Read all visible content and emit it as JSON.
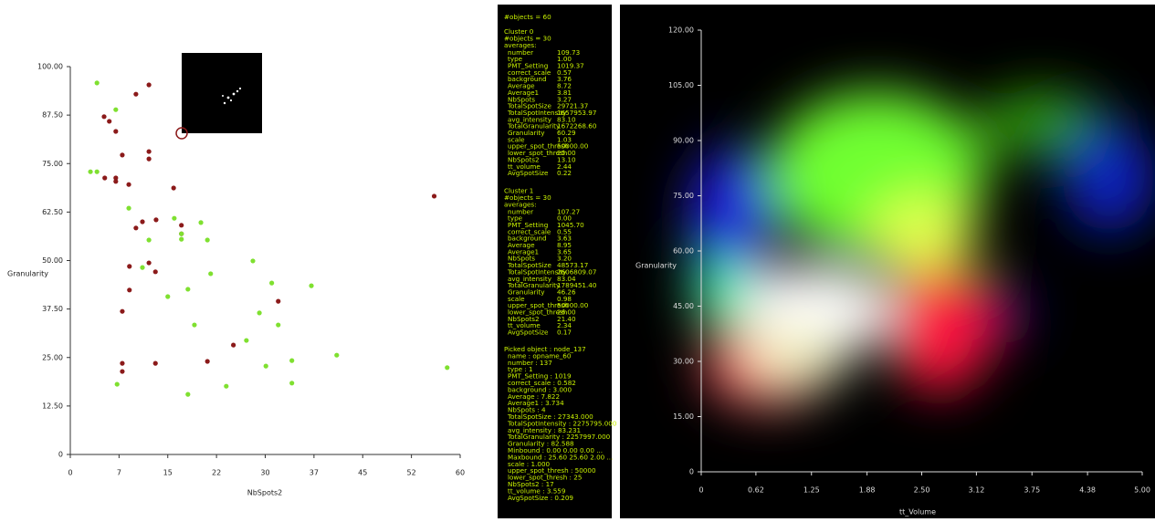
{
  "chart_data": [
    {
      "type": "scatter",
      "x_label": "NbSpots2",
      "y_label": "Granularity",
      "xlim": [
        0,
        60
      ],
      "ylim": [
        0,
        100
      ],
      "xticks": [
        0,
        {
          "value": 7.5,
          "label": "7"
        },
        15,
        {
          "value": 22.5,
          "label": "22"
        },
        30,
        {
          "value": 37.5,
          "label": "37"
        },
        45,
        {
          "value": 52.5,
          "label": "52"
        },
        60
      ],
      "yticks": [
        0,
        {
          "value": 12.5,
          "label": "12.50"
        },
        {
          "value": 25,
          "label": "25.00"
        },
        {
          "value": 37.5,
          "label": "37.50"
        },
        {
          "value": 50,
          "label": "50.00"
        },
        {
          "value": 62.5,
          "label": "62.50"
        },
        {
          "value": 75,
          "label": "75.00"
        },
        {
          "value": 87.5,
          "label": "87.50"
        },
        {
          "value": 100,
          "label": "100.00"
        }
      ],
      "series": [
        {
          "color": "#8b1a1a",
          "x": [
            10.1,
            12.1,
            5.2,
            6.0,
            7.0,
            8.0,
            12.1,
            12.1,
            5.3,
            7.0,
            7.0,
            9.0,
            15.9,
            56.0,
            13.2,
            11.1,
            17.1,
            10.1,
            17.1,
            9.1,
            12.1,
            13.1,
            9.1,
            32.0,
            8.0,
            25.1,
            21.1,
            8.0,
            13.1,
            8.0
          ],
          "values": [
            92.9,
            95.3,
            87.1,
            85.9,
            83.3,
            77.2,
            78.1,
            76.2,
            71.3,
            71.3,
            70.4,
            69.6,
            68.7,
            66.6,
            60.5,
            60.0,
            59.1,
            58.4,
            56.9,
            48.5,
            49.4,
            47.1,
            42.4,
            39.5,
            36.9,
            28.2,
            24.0,
            23.5,
            23.5,
            21.4
          ]
        },
        {
          "color": "#7fe030",
          "x": [
            4.1,
            7.0,
            3.1,
            4.1,
            9.0,
            16.0,
            20.1,
            17.1,
            17.1,
            12.1,
            21.1,
            21.6,
            28.1,
            11.1,
            31.0,
            37.1,
            18.1,
            15.0,
            29.1,
            19.1,
            32.0,
            27.1,
            41.0,
            34.1,
            30.1,
            58.0,
            34.1,
            24.0,
            7.2,
            18.1
          ],
          "values": [
            95.8,
            88.9,
            72.9,
            72.9,
            63.5,
            60.9,
            59.8,
            56.9,
            55.5,
            55.3,
            55.3,
            46.6,
            49.9,
            48.2,
            44.2,
            43.5,
            42.6,
            40.7,
            36.5,
            33.4,
            33.4,
            29.4,
            25.6,
            24.2,
            22.8,
            22.4,
            18.4,
            17.6,
            18.1,
            15.5
          ]
        }
      ]
    },
    {
      "type": "density",
      "x_label": "tt_Volume",
      "y_label": "Granularity",
      "xlim": [
        0,
        5
      ],
      "ylim": [
        0,
        120
      ],
      "xticks": [
        0,
        0.62,
        1.25,
        1.88,
        {
          "value": 2.5,
          "label": "2.50"
        },
        3.12,
        3.75,
        4.38,
        {
          "value": 5,
          "label": "5.00"
        }
      ],
      "yticks": [
        0,
        {
          "value": 15,
          "label": "15.00"
        },
        {
          "value": 30,
          "label": "30.00"
        },
        {
          "value": 45,
          "label": "45.00"
        },
        {
          "value": 60,
          "label": "60.00"
        },
        {
          "value": 75,
          "label": "75.00"
        },
        {
          "value": 90,
          "label": "90.00"
        },
        {
          "value": 105,
          "label": "105.00"
        },
        {
          "value": 120,
          "label": "120.00"
        }
      ]
    }
  ],
  "info_panel": {
    "header": "#objects = 60",
    "clusters": [
      {
        "name": "Cluster 0",
        "count": "#objects = 30",
        "averages": "averages:",
        "rows": [
          [
            "number",
            "109.73"
          ],
          [
            "type",
            "1.00"
          ],
          [
            "PMT_Setting",
            "1019.37"
          ],
          [
            "correct_scale",
            "0.57"
          ],
          [
            "background",
            "3.76"
          ],
          [
            "Average",
            "8.72"
          ],
          [
            "Average1",
            "3.81"
          ],
          [
            "NbSpots",
            "3.27"
          ],
          [
            "TotalSpotSize",
            "29721.37"
          ],
          [
            "TotalSpotIntensity",
            "1657953.97"
          ],
          [
            "avg_intensity",
            "83.10"
          ],
          [
            "TotalGranularity",
            "1672268.60"
          ],
          [
            "Granularity",
            "60.29"
          ],
          [
            "scale",
            "1.03"
          ],
          [
            "upper_spot_thresh",
            "50000.00"
          ],
          [
            "lower_spot_thresh",
            "25.00"
          ],
          [
            "NbSpots2",
            "13.10"
          ],
          [
            "tt_volume",
            "2.44"
          ],
          [
            "AvgSpotSize",
            "0.22"
          ]
        ]
      },
      {
        "name": "Cluster 1",
        "count": "#objects = 30",
        "averages": "averages:",
        "rows": [
          [
            "number",
            "107.27"
          ],
          [
            "type",
            "0.00"
          ],
          [
            "PMT_Setting",
            "1045.70"
          ],
          [
            "correct_scale",
            "0.55"
          ],
          [
            "background",
            "3.63"
          ],
          [
            "Average",
            "8.95"
          ],
          [
            "Average1",
            "3.65"
          ],
          [
            "NbSpots",
            "3.20"
          ],
          [
            "TotalSpotSize",
            "48573.17"
          ],
          [
            "TotalSpotIntensity",
            "2606809.07"
          ],
          [
            "avg_intensity",
            "83.04"
          ],
          [
            "TotalGranularity",
            "1789451.40"
          ],
          [
            "Granularity",
            "46.26"
          ],
          [
            "scale",
            "0.98"
          ],
          [
            "upper_spot_thresh",
            "50000.00"
          ],
          [
            "lower_spot_thresh",
            "26.00"
          ],
          [
            "NbSpots2",
            "21.40"
          ],
          [
            "tt_volume",
            "2.34"
          ],
          [
            "AvgSpotSize",
            "0.17"
          ]
        ]
      }
    ],
    "picked": [
      "Picked object : node_137",
      "name : opname_60",
      "number : 137",
      "type : 1",
      "PMT_Setting : 1019",
      "correct_scale : 0.582",
      "background : 3.000",
      "Average : 7.822",
      "Average1 : 3.734",
      "NbSpots : 4",
      "TotalSpotSize : 27343.000",
      "TotalSpotIntensity : 2275795.000",
      "avg_intensity : 83.231",
      "TotalGranularity : 2257997.000",
      "Granularity : 82.588",
      "Minbound : 0.00 0.00 0.00 ...",
      "Maxbound : 25.60 25.60 2.00 ...",
      "scale : 1.000",
      "upper_spot_thresh : 50000",
      "lower_spot_thresh : 25",
      "NbSpots2 : 17",
      "tt_volume : 3.559",
      "AvgSpotSize : 0.209"
    ]
  }
}
